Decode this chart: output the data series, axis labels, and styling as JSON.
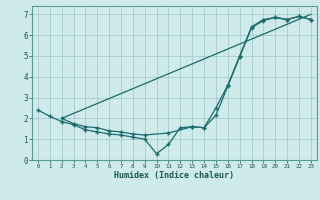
{
  "xlabel": "Humidex (Indice chaleur)",
  "bg_color": "#ceeaea",
  "grid_color": "#aacccc",
  "line_color": "#1a6b6b",
  "xlim": [
    -0.5,
    23.5
  ],
  "ylim": [
    0,
    7.4
  ],
  "xticks": [
    0,
    1,
    2,
    3,
    4,
    5,
    6,
    7,
    8,
    9,
    10,
    11,
    12,
    13,
    14,
    15,
    16,
    17,
    18,
    19,
    20,
    21,
    22,
    23
  ],
  "yticks": [
    0,
    1,
    2,
    3,
    4,
    5,
    6,
    7
  ],
  "line1_x": [
    0,
    1,
    2,
    3,
    4,
    5,
    6,
    7,
    8,
    9,
    10,
    11,
    12,
    13,
    14,
    15,
    16,
    17,
    18,
    19,
    20,
    21,
    22,
    23
  ],
  "line1_y": [
    2.4,
    2.1,
    1.85,
    1.7,
    1.45,
    1.35,
    1.25,
    1.2,
    1.1,
    1.0,
    0.3,
    0.75,
    1.55,
    1.6,
    1.55,
    2.15,
    3.55,
    4.95,
    6.35,
    6.7,
    6.85,
    6.75,
    6.9,
    6.75
  ],
  "line2_x": [
    2,
    23
  ],
  "line2_y": [
    2.0,
    7.0
  ],
  "line3_x": [
    2,
    3,
    4,
    5,
    6,
    7,
    8,
    9,
    11,
    13,
    14,
    15,
    16,
    17,
    18,
    19,
    20,
    21,
    22,
    23
  ],
  "line3_y": [
    2.0,
    1.75,
    1.6,
    1.55,
    1.4,
    1.35,
    1.25,
    1.2,
    1.3,
    1.6,
    1.55,
    2.5,
    3.6,
    5.0,
    6.4,
    6.75,
    6.85,
    6.75,
    6.9,
    6.75
  ]
}
